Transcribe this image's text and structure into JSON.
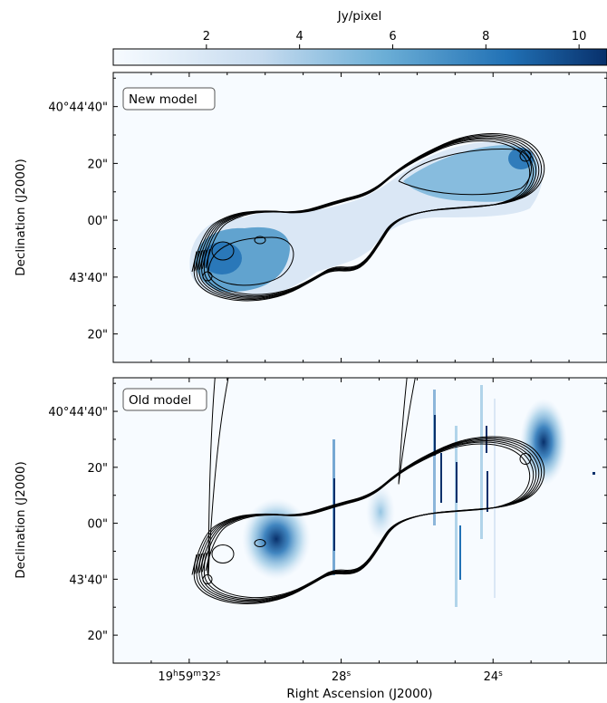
{
  "chart_data": {
    "type": "heatmap",
    "colorbar": {
      "label": "Jy/pixel",
      "ticks": [
        "2",
        "4",
        "6",
        "8",
        "10"
      ],
      "tick_values": [
        2,
        4,
        6,
        8,
        10
      ],
      "range": [
        0,
        10.6
      ],
      "colormap": [
        "#f7fbff",
        "#c6dbef",
        "#6baed6",
        "#2171b5",
        "#08306b"
      ]
    },
    "panels": [
      {
        "label": "New model",
        "ylabel": "Declination (J2000)",
        "ytick_labels": [
          "40°44'40\"",
          "20\"",
          "00\"",
          "43'40\"",
          "20\""
        ]
      },
      {
        "label": "Old model",
        "ylabel": "Declination (J2000)",
        "ytick_labels": [
          "40°44'40\"",
          "20\"",
          "00\"",
          "43'40\"",
          "20\""
        ],
        "xlabel": "Right Ascension (J2000)",
        "xtick_labels": [
          "19h59m32s",
          "28s",
          "24s"
        ]
      }
    ],
    "axis_values": {
      "x_ticks_seconds": [
        33,
        32,
        31,
        30,
        29,
        28,
        27,
        26,
        25,
        24,
        23,
        22
      ],
      "x_labeled_seconds": [
        32,
        28,
        24
      ],
      "x_range_seconds": [
        34.0,
        21.0
      ],
      "y_ticks_arcsec": [
        50,
        40,
        30,
        20,
        10,
        0,
        -10,
        -20,
        -30,
        -40
      ],
      "y_labeled_arcsec": [
        40,
        20,
        0,
        -20,
        -40
      ],
      "y_range_arcsec": [
        -50,
        52
      ],
      "y_reference": "40°44'00\""
    },
    "sources": {
      "new_model": [
        {
          "ra_s": 31.2,
          "dec_arcsec": -10,
          "peak": 7.5
        },
        {
          "ra_s": 31.6,
          "dec_arcsec": -20,
          "peak": 6.0
        },
        {
          "ra_s": 30.3,
          "dec_arcsec": -7,
          "peak": 3.5
        },
        {
          "ra_s": 25.5,
          "dec_arcsec": 18,
          "peak": 3.2
        },
        {
          "ra_s": 23.6,
          "dec_arcsec": 24,
          "peak": 6.5
        }
      ],
      "old_model": [
        {
          "ra_s": 30.2,
          "dec_arcsec": -7,
          "peak": 8.5
        },
        {
          "ra_s": 22.7,
          "dec_arcsec": 25,
          "peak": 10.0
        }
      ]
    },
    "grid": false
  }
}
